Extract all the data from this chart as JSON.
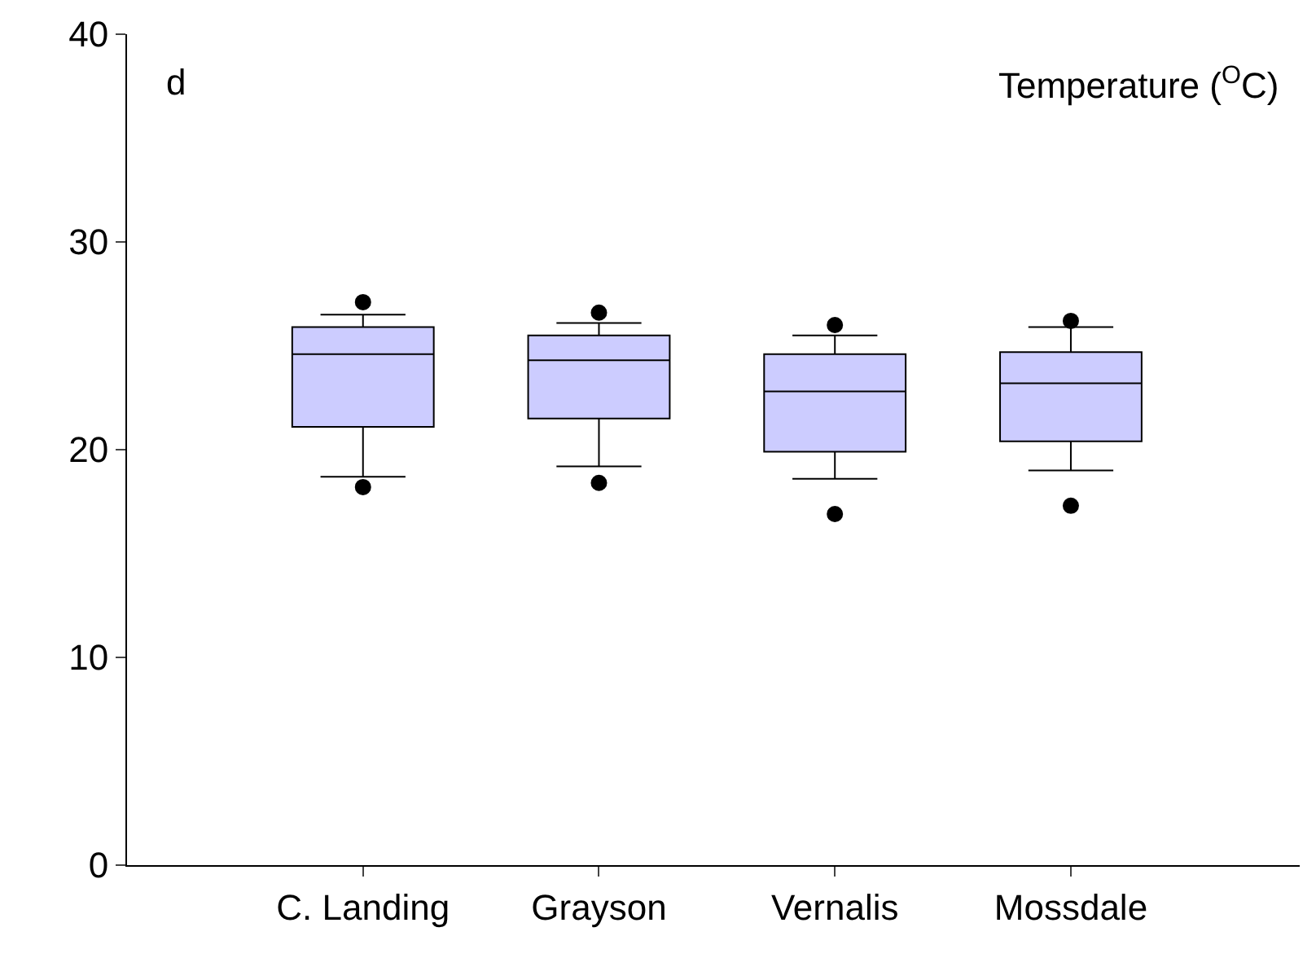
{
  "chart_data": {
    "type": "box",
    "categories": [
      "C. Landing",
      "Grayson",
      "Vernalis",
      "Mossdale"
    ],
    "boxes": [
      {
        "low": 18.7,
        "q1": 21.1,
        "median": 24.6,
        "q3": 25.9,
        "high": 26.5,
        "outliers": [
          27.1,
          18.2
        ]
      },
      {
        "low": 19.2,
        "q1": 21.5,
        "median": 24.3,
        "q3": 25.5,
        "high": 26.1,
        "outliers": [
          26.6,
          18.4
        ]
      },
      {
        "low": 18.6,
        "q1": 19.9,
        "median": 22.8,
        "q3": 24.6,
        "high": 25.5,
        "outliers": [
          26.0,
          16.9
        ]
      },
      {
        "low": 19.0,
        "q1": 20.4,
        "median": 23.2,
        "q3": 24.7,
        "high": 25.9,
        "outliers": [
          26.2,
          17.3
        ]
      }
    ],
    "color": "#ccccff",
    "ylim": [
      0,
      40
    ],
    "yticks": [
      0,
      10,
      20,
      30,
      40
    ],
    "grid": false,
    "marker": "circle",
    "annotations": [
      "d",
      "Temperature ($^{O}$C)"
    ]
  }
}
